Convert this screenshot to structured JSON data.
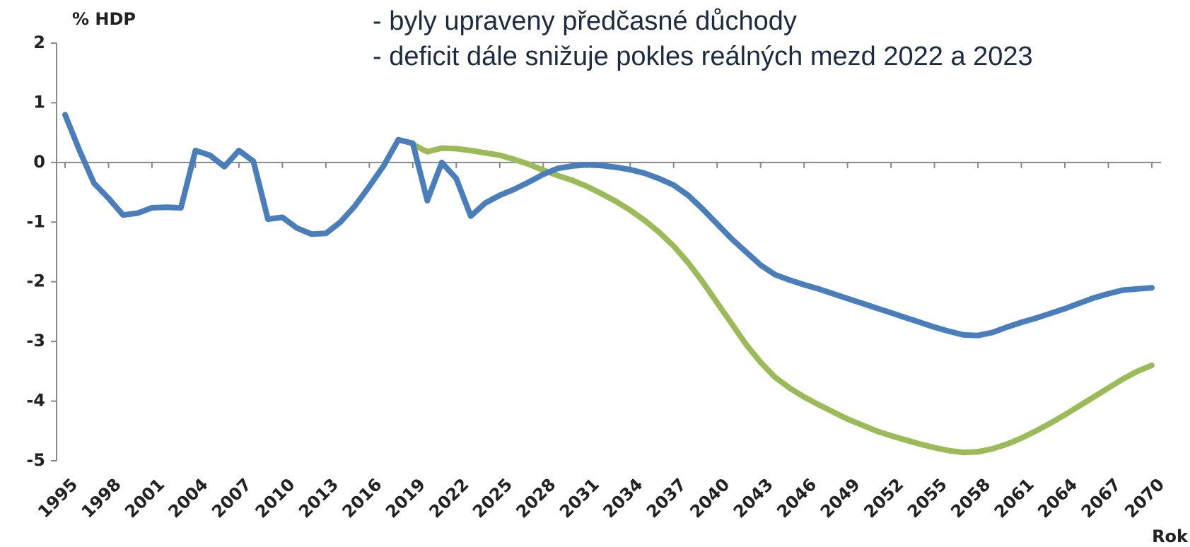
{
  "chart_data": {
    "type": "line",
    "annotations": [
      "- byly upraveny předčasné důchody",
      "- deficit dále snižuje pokles reálných mezd 2022 a 2023"
    ],
    "ylabel": "% HDP",
    "xlabel": "Rok",
    "x": [
      1995,
      1996,
      1997,
      1998,
      1999,
      2000,
      2001,
      2002,
      2003,
      2004,
      2005,
      2006,
      2007,
      2008,
      2009,
      2010,
      2011,
      2012,
      2013,
      2014,
      2015,
      2016,
      2017,
      2018,
      2019,
      2020,
      2021,
      2022,
      2023,
      2024,
      2025,
      2026,
      2027,
      2028,
      2029,
      2030,
      2031,
      2032,
      2033,
      2034,
      2035,
      2036,
      2037,
      2038,
      2039,
      2040,
      2041,
      2042,
      2043,
      2044,
      2045,
      2046,
      2047,
      2048,
      2049,
      2050,
      2051,
      2052,
      2053,
      2054,
      2055,
      2056,
      2057,
      2058,
      2059,
      2060,
      2061,
      2062,
      2063,
      2064,
      2065,
      2066,
      2067,
      2068,
      2069,
      2070
    ],
    "series": [
      {
        "color": "#4a7ebb",
        "values": [
          0.8,
          0.2,
          -0.35,
          -0.6,
          -0.88,
          -0.85,
          -0.76,
          -0.75,
          -0.76,
          0.2,
          0.12,
          -0.07,
          0.2,
          0.02,
          -0.95,
          -0.92,
          -1.1,
          -1.2,
          -1.19,
          -1.0,
          -0.73,
          -0.4,
          -0.05,
          0.38,
          0.32,
          -0.64,
          0,
          -0.27,
          -0.9,
          -0.68,
          -0.55,
          -0.45,
          -0.33,
          -0.2,
          -0.1,
          -0.06,
          -0.04,
          -0.05,
          -0.08,
          -0.12,
          -0.18,
          -0.27,
          -0.38,
          -0.55,
          -0.78,
          -1.03,
          -1.28,
          -1.5,
          -1.72,
          -1.88,
          -1.97,
          -2.05,
          -2.12,
          -2.2,
          -2.28,
          -2.36,
          -2.44,
          -2.52,
          -2.6,
          -2.68,
          -2.76,
          -2.83,
          -2.89,
          -2.9,
          -2.85,
          -2.76,
          -2.68,
          -2.61,
          -2.53,
          -2.45,
          -2.36,
          -2.27,
          -2.2,
          -2.14,
          -2.12,
          -2.1
        ]
      },
      {
        "color": "#9bbb59",
        "values": [
          null,
          null,
          null,
          null,
          null,
          null,
          null,
          null,
          null,
          null,
          null,
          null,
          null,
          null,
          null,
          null,
          null,
          null,
          null,
          null,
          null,
          null,
          null,
          null,
          0.3,
          0.18,
          0.24,
          0.23,
          0.2,
          0.16,
          0.12,
          0.05,
          -0.03,
          -0.13,
          -0.22,
          -0.3,
          -0.4,
          -0.52,
          -0.65,
          -0.8,
          -0.97,
          -1.17,
          -1.4,
          -1.68,
          -2.0,
          -2.35,
          -2.7,
          -3.05,
          -3.35,
          -3.6,
          -3.78,
          -3.93,
          -4.06,
          -4.18,
          -4.3,
          -4.4,
          -4.5,
          -4.58,
          -4.65,
          -4.72,
          -4.78,
          -4.83,
          -4.86,
          -4.85,
          -4.8,
          -4.72,
          -4.62,
          -4.5,
          -4.37,
          -4.23,
          -4.08,
          -3.93,
          -3.78,
          -3.63,
          -3.5,
          -3.4
        ]
      }
    ],
    "xlim": [
      1995,
      2070
    ],
    "xticks": [
      1995,
      1998,
      2001,
      2004,
      2007,
      2010,
      2013,
      2016,
      2019,
      2022,
      2025,
      2028,
      2031,
      2034,
      2037,
      2040,
      2043,
      2046,
      2049,
      2052,
      2055,
      2058,
      2061,
      2064,
      2067,
      2070
    ],
    "ylim": [
      -5,
      2
    ],
    "yticks": [
      -5,
      -4,
      -3,
      -2,
      -1,
      0,
      1,
      2
    ],
    "grid": false
  }
}
